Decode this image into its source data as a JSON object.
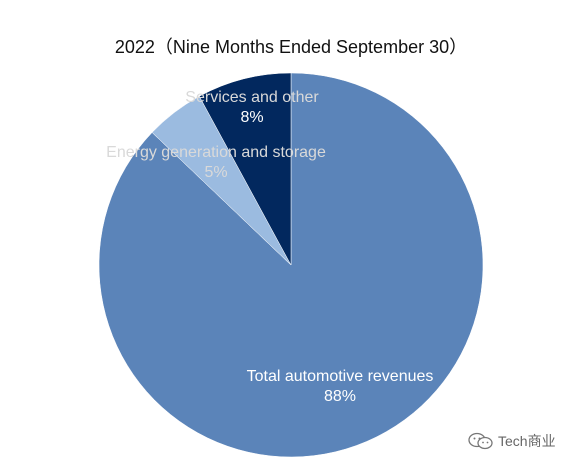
{
  "chart_data": {
    "type": "pie",
    "title": "2022（Nine Months Ended September 30）",
    "slices": [
      {
        "name": "Total automotive revenues",
        "value": 88,
        "label": "88%",
        "color": "#5b84b9"
      },
      {
        "name": "Energy generation and storage",
        "value": 5,
        "label": "5%",
        "color": "#9bbbe0"
      },
      {
        "name": "Services and other",
        "value": 8,
        "label": "8%",
        "color": "#02285e"
      }
    ],
    "start": "12 o'clock",
    "direction": "clockwise"
  },
  "watermark": {
    "text": "Tech商业",
    "icon": "wechat-icon"
  }
}
